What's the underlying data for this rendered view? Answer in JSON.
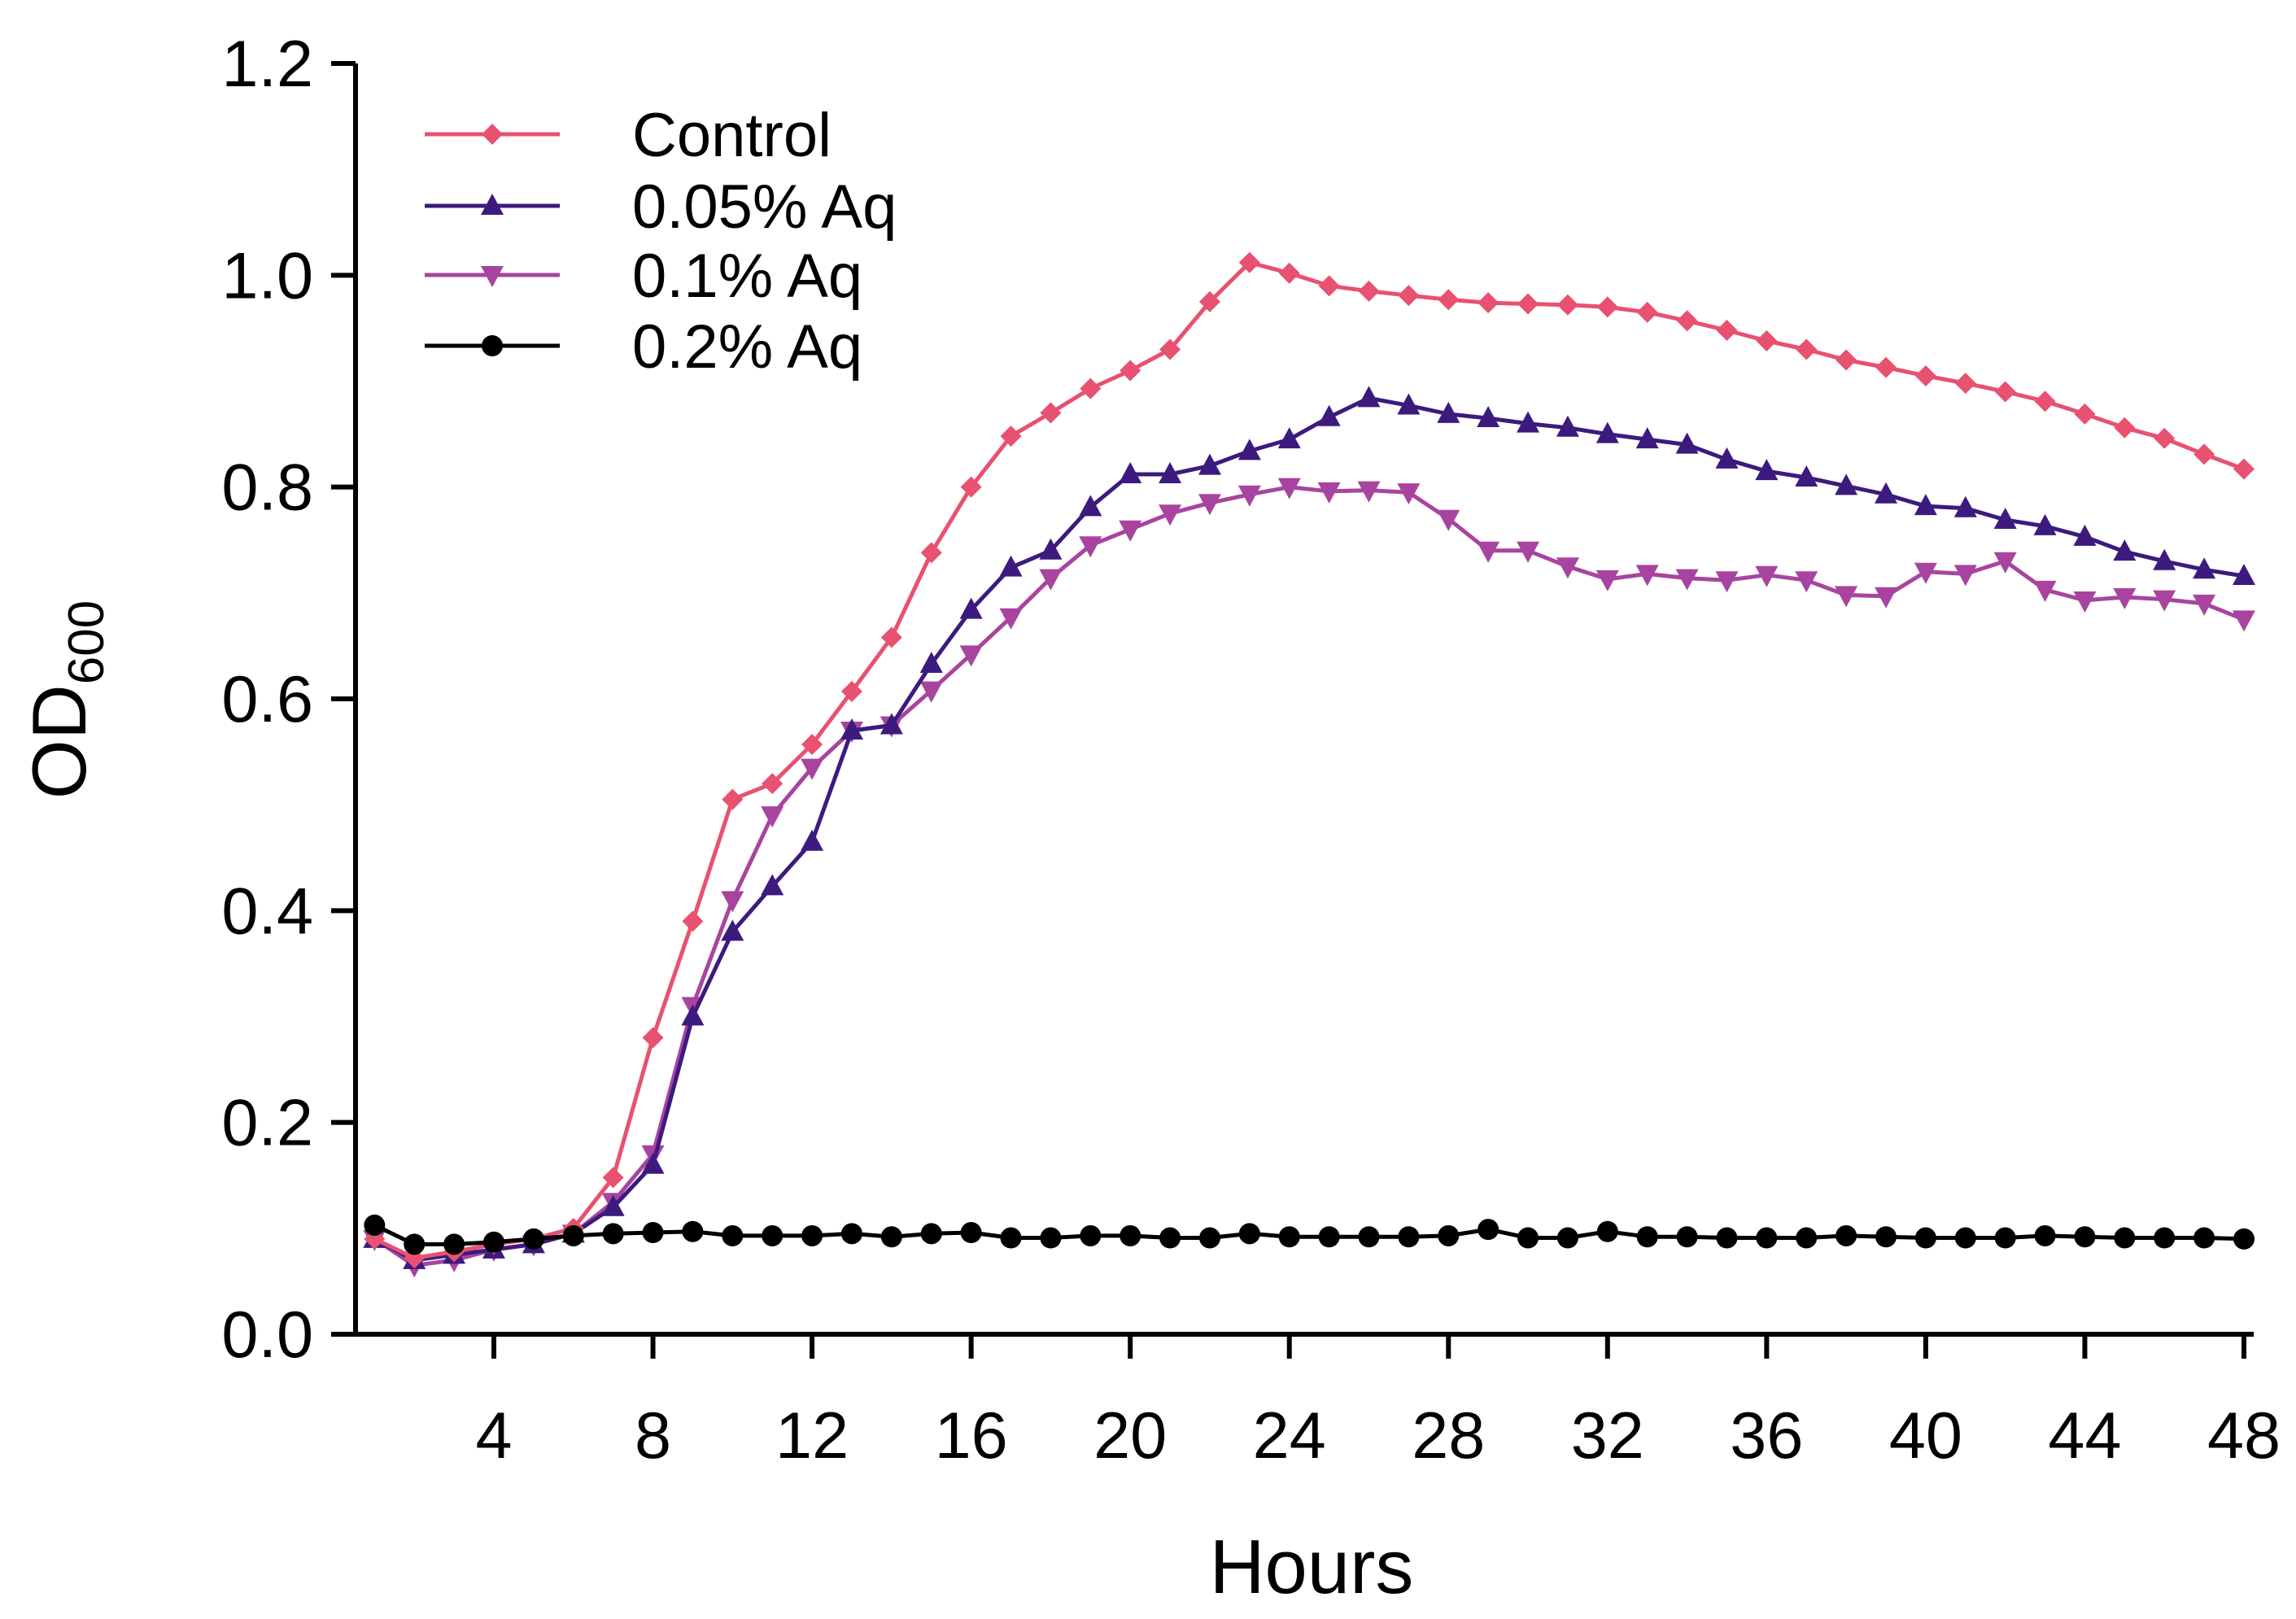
{
  "chart_data": {
    "type": "line",
    "xlabel": "Hours",
    "ylabel": {
      "main": "OD",
      "subscript": "600"
    },
    "xlim": [
      0,
      48
    ],
    "ylim": [
      0,
      1.2
    ],
    "xticks": [
      4,
      8,
      12,
      16,
      20,
      24,
      28,
      32,
      36,
      40,
      44,
      48
    ],
    "yticks": [
      "0.0",
      "0.2",
      "0.4",
      "0.6",
      "0.8",
      "1.0",
      "1.2"
    ],
    "grid": false,
    "legend_position": "top-left",
    "x": [
      1,
      2,
      3,
      4,
      5,
      6,
      7,
      8,
      9,
      10,
      11,
      12,
      13,
      14,
      15,
      16,
      17,
      18,
      19,
      20,
      21,
      22,
      23,
      24,
      25,
      26,
      27,
      28,
      29,
      30,
      31,
      32,
      33,
      34,
      35,
      36,
      37,
      38,
      39,
      40,
      41,
      42,
      43,
      44,
      45,
      46,
      47,
      48
    ],
    "series": [
      {
        "name": "Control",
        "color": "#e8516f",
        "marker": "diamond",
        "values": [
          0.09,
          0.072,
          0.078,
          0.085,
          0.09,
          0.1,
          0.148,
          0.28,
          0.39,
          0.505,
          0.52,
          0.557,
          0.607,
          0.658,
          0.738,
          0.8,
          0.848,
          0.87,
          0.893,
          0.91,
          0.93,
          0.975,
          1.012,
          1.002,
          0.99,
          0.985,
          0.981,
          0.977,
          0.974,
          0.973,
          0.972,
          0.97,
          0.965,
          0.957,
          0.948,
          0.938,
          0.93,
          0.92,
          0.913,
          0.905,
          0.898,
          0.89,
          0.881,
          0.869,
          0.856,
          0.846,
          0.831,
          0.817
        ]
      },
      {
        "name": "0.05% Aq",
        "color": "#3c1a7e",
        "marker": "triangle-up",
        "values": [
          0.09,
          0.07,
          0.075,
          0.08,
          0.085,
          0.095,
          0.12,
          0.16,
          0.3,
          0.38,
          0.423,
          0.465,
          0.57,
          0.575,
          0.633,
          0.684,
          0.724,
          0.74,
          0.781,
          0.812,
          0.812,
          0.82,
          0.834,
          0.845,
          0.866,
          0.884,
          0.877,
          0.869,
          0.865,
          0.86,
          0.856,
          0.85,
          0.845,
          0.84,
          0.826,
          0.815,
          0.809,
          0.801,
          0.793,
          0.782,
          0.78,
          0.769,
          0.763,
          0.753,
          0.739,
          0.73,
          0.722,
          0.716
        ]
      },
      {
        "name": "0.1% Aq",
        "color": "#a8449f",
        "marker": "triangle-down",
        "values": [
          0.09,
          0.065,
          0.07,
          0.08,
          0.085,
          0.095,
          0.125,
          0.17,
          0.31,
          0.41,
          0.49,
          0.535,
          0.57,
          0.575,
          0.608,
          0.642,
          0.677,
          0.714,
          0.745,
          0.76,
          0.775,
          0.785,
          0.793,
          0.8,
          0.796,
          0.797,
          0.795,
          0.77,
          0.74,
          0.74,
          0.725,
          0.713,
          0.718,
          0.714,
          0.712,
          0.717,
          0.712,
          0.698,
          0.697,
          0.72,
          0.718,
          0.73,
          0.703,
          0.693,
          0.696,
          0.694,
          0.69,
          0.675
        ]
      },
      {
        "name": "0.2% Aq",
        "color": "#000000",
        "marker": "circle",
        "values": [
          0.103,
          0.085,
          0.085,
          0.087,
          0.09,
          0.093,
          0.095,
          0.096,
          0.097,
          0.093,
          0.093,
          0.093,
          0.095,
          0.092,
          0.095,
          0.096,
          0.091,
          0.091,
          0.093,
          0.093,
          0.091,
          0.091,
          0.095,
          0.092,
          0.092,
          0.092,
          0.092,
          0.093,
          0.099,
          0.091,
          0.091,
          0.097,
          0.092,
          0.092,
          0.091,
          0.091,
          0.091,
          0.093,
          0.092,
          0.091,
          0.091,
          0.091,
          0.093,
          0.092,
          0.091,
          0.091,
          0.091,
          0.09
        ]
      }
    ]
  }
}
